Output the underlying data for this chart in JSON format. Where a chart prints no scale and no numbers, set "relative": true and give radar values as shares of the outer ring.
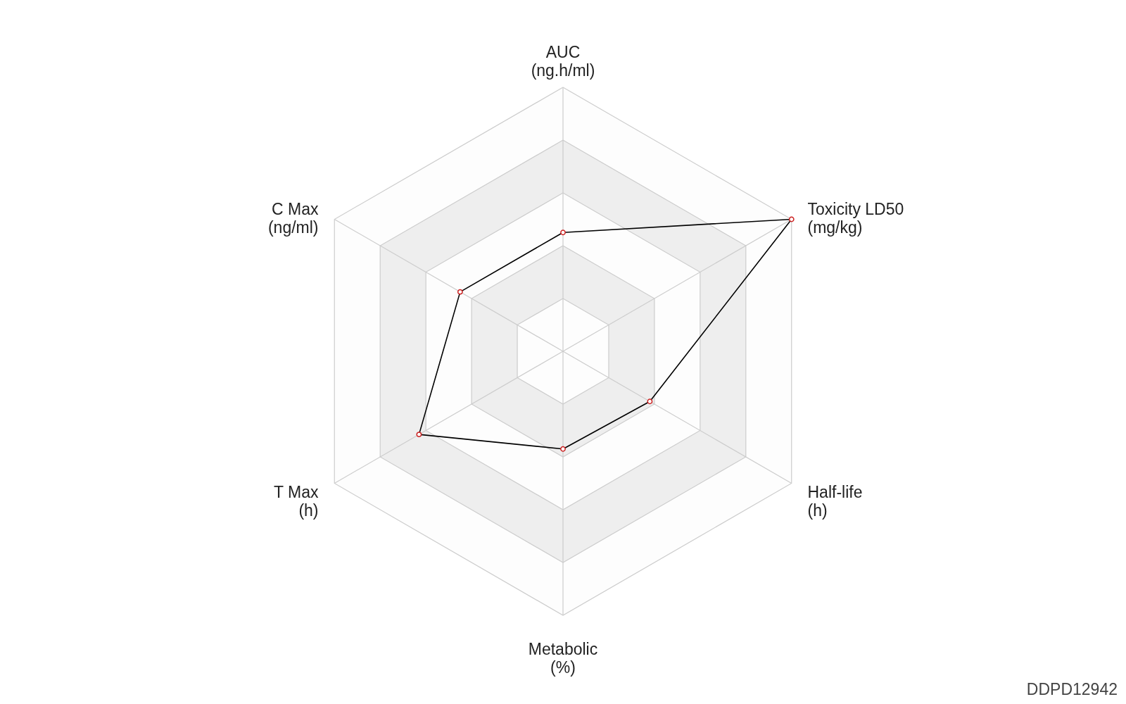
{
  "chart_data": {
    "type": "radar",
    "relative": true,
    "grid": true,
    "marker": "circle",
    "line_style": "solid",
    "categories": [
      "AUC (ng.h/ml)",
      "Toxicity LD50 (mg/kg)",
      "Half-life (h)",
      "Metabolic (%)",
      "T Max (h)",
      "C Max (ng/ml)"
    ],
    "series": [
      {
        "color": "#000000",
        "values": [
          0.45,
          1.0,
          0.38,
          0.37,
          0.63,
          0.45
        ]
      }
    ],
    "annotations": [
      "DDPD12942"
    ]
  }
}
